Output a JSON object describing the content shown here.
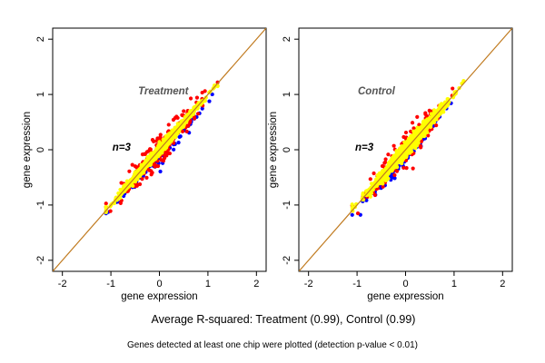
{
  "colors": {
    "red": "#ff0000",
    "blue": "#0000ff",
    "yellow": "#ffff00",
    "diagonal": "#c07a1f",
    "frame": "#000000"
  },
  "caption": "Average R-squared: Treatment (0.99), Control (0.99)",
  "footnote": "Genes detected at least one chip were plotted (detection p-value < 0.01)",
  "chart_data": [
    {
      "type": "scatter",
      "title": "",
      "annotations": [
        {
          "text": "Treatment",
          "x": 0.08,
          "y": 1.0
        },
        {
          "text": "n=3",
          "x": -0.78,
          "y": -0.02
        }
      ],
      "xlabel": "gene expression",
      "ylabel": "gene expression",
      "xlim": [
        -2.2,
        2.2
      ],
      "ylim": [
        -2.2,
        2.2
      ],
      "xticks": [
        -2,
        -1,
        0,
        1,
        2
      ],
      "yticks": [
        -2,
        -1,
        0,
        1,
        2
      ],
      "reference_line": {
        "slope": 1,
        "intercept": 0,
        "color": "#c07a1f"
      },
      "point_cloud": {
        "x_range": [
          -1.1,
          1.2
        ],
        "approx_points": 1200,
        "slope": 1
      },
      "series": [
        {
          "color": "#0000ff",
          "side": "below diagonal",
          "max_offset": 0.22
        },
        {
          "color": "#ff0000",
          "side": "both sides of diagonal",
          "max_offset": 0.3
        },
        {
          "color": "#ffff00",
          "side": "on diagonal",
          "max_offset": 0.1
        }
      ]
    },
    {
      "type": "scatter",
      "title": "",
      "annotations": [
        {
          "text": "Control",
          "x": -0.6,
          "y": 1.0
        },
        {
          "text": "n=3",
          "x": -0.85,
          "y": -0.02
        }
      ],
      "xlabel": "gene expression",
      "ylabel": "gene expression",
      "xlim": [
        -2.2,
        2.2
      ],
      "ylim": [
        -2.2,
        2.2
      ],
      "xticks": [
        -2,
        -1,
        0,
        1,
        2
      ],
      "yticks": [
        -2,
        -1,
        0,
        1,
        2
      ],
      "reference_line": {
        "slope": 1,
        "intercept": 0,
        "color": "#c07a1f"
      },
      "point_cloud": {
        "x_range": [
          -1.1,
          1.2
        ],
        "approx_points": 1200,
        "slope": 1
      },
      "series": [
        {
          "color": "#0000ff",
          "side": "below diagonal",
          "max_offset": 0.2
        },
        {
          "color": "#ff0000",
          "side": "both sides of diagonal",
          "max_offset": 0.3
        },
        {
          "color": "#ffff00",
          "side": "on diagonal",
          "max_offset": 0.15
        }
      ]
    }
  ]
}
